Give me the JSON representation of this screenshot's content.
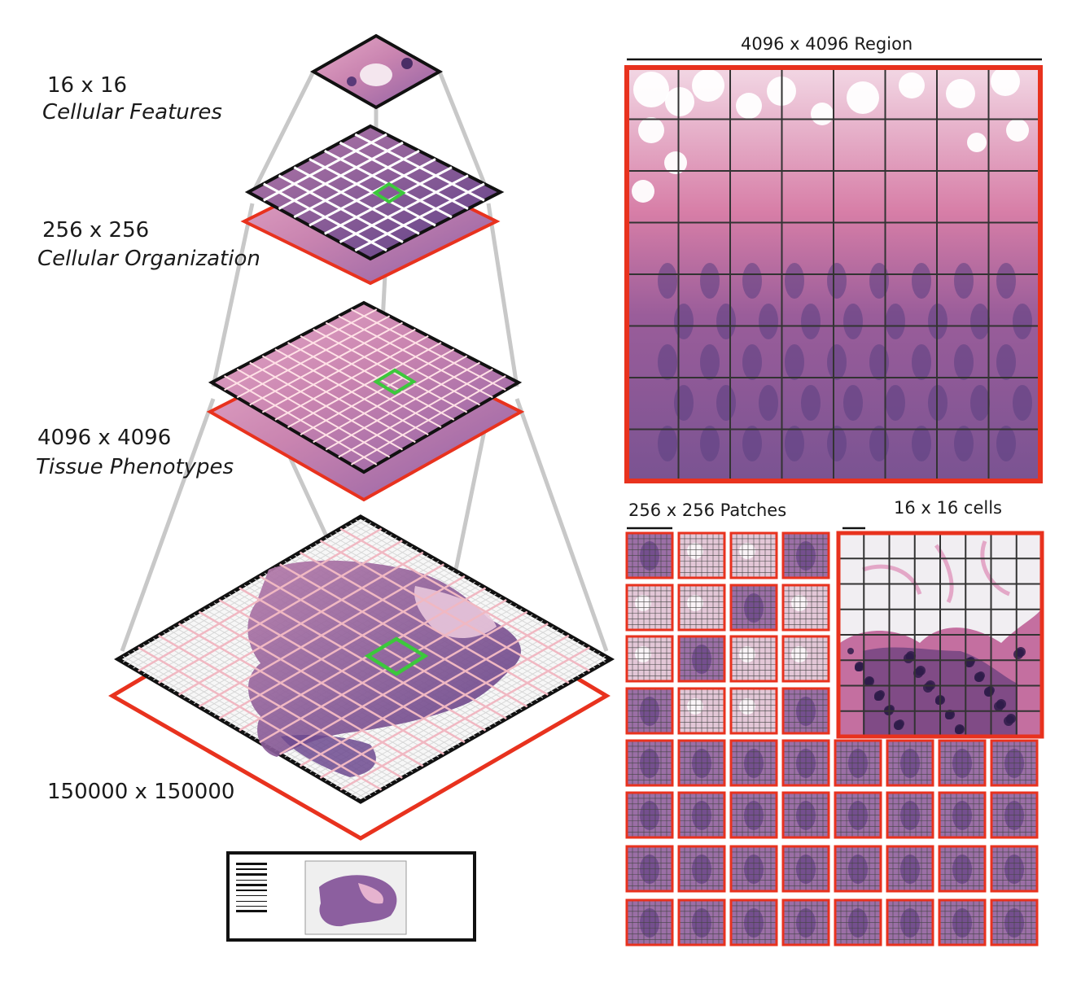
{
  "levels": [
    {
      "size": "16 x 16",
      "description": "Cellular Features"
    },
    {
      "size": "256 x 256",
      "description": "Cellular Organization"
    },
    {
      "size": "4096 x 4096",
      "description": "Tissue Phenotypes"
    },
    {
      "size": "150000 x 150000",
      "description": ""
    }
  ],
  "panels": {
    "region_title": "4096 x 4096 Region",
    "patches_title": "256 x 256 Patches",
    "cells_title": "16 x 16 cells"
  },
  "colors": {
    "frame_red": "#e8321e",
    "highlight_green": "#3cc83c",
    "tissue_pink": "#d98fb4",
    "tissue_purple": "#6d4a8f",
    "grid_dark": "#333333",
    "connector_gray": "#c8c8c8"
  },
  "icons": [
    "barcode-icon",
    "slide-thumbnail"
  ]
}
